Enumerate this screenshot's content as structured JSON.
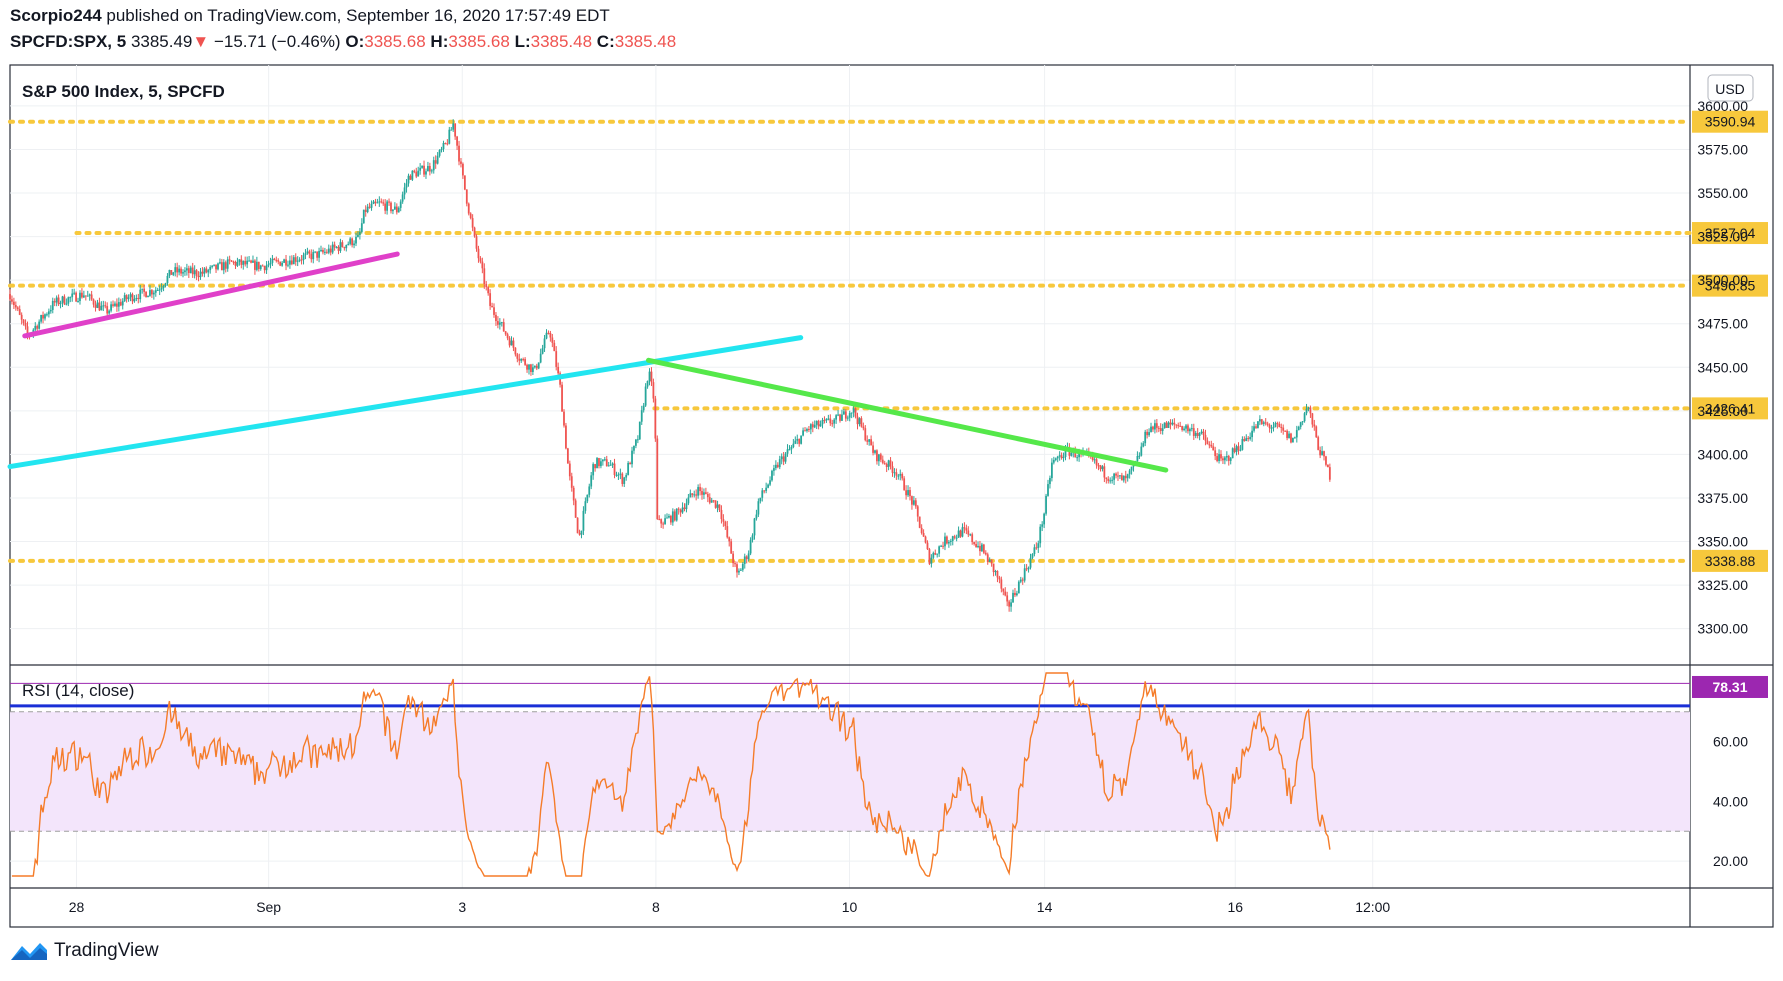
{
  "header": {
    "author": "Scorpio244",
    "published": "published on TradingView.com, September 16, 2020 17:57:49 EDT",
    "symbol": "SPCFD:SPX, 5",
    "last": "3385.49",
    "change": "−15.71 (−0.46%)",
    "o_label": "O:",
    "o_value": "3385.68",
    "h_label": "H:",
    "h_value": "3385.68",
    "l_label": "L:",
    "l_value": "3385.48",
    "c_label": "C:",
    "c_value": "3385.48"
  },
  "brand": {
    "name": "TradingView"
  },
  "chart_data": [
    {
      "type": "candlestick",
      "title": "S&P 500 Index, 5, SPCFD",
      "currency": "USD",
      "x_ticks": [
        {
          "label": "28",
          "pos": 0.045
        },
        {
          "label": "Sep",
          "pos": 0.175
        },
        {
          "label": "3",
          "pos": 0.306
        },
        {
          "label": "8",
          "pos": 0.437
        },
        {
          "label": "10",
          "pos": 0.568
        },
        {
          "label": "14",
          "pos": 0.7
        },
        {
          "label": "16",
          "pos": 0.829
        },
        {
          "label": "12:00",
          "pos": 0.922
        }
      ],
      "ylim": [
        3282,
        3612
      ],
      "y_ticks": [
        "3300.00",
        "3325.00",
        "3350.00",
        "3375.00",
        "3400.00",
        "3425.00",
        "3450.00",
        "3475.00",
        "3500.00",
        "3525.00",
        "3550.00",
        "3575.00",
        "3600.00"
      ],
      "price_path": [
        [
          0.0,
          3492
        ],
        [
          0.012,
          3468
        ],
        [
          0.03,
          3487
        ],
        [
          0.05,
          3492
        ],
        [
          0.065,
          3482
        ],
        [
          0.08,
          3490
        ],
        [
          0.1,
          3495
        ],
        [
          0.11,
          3505
        ],
        [
          0.13,
          3504
        ],
        [
          0.15,
          3510
        ],
        [
          0.17,
          3508
        ],
        [
          0.19,
          3512
        ],
        [
          0.21,
          3515
        ],
        [
          0.225,
          3520
        ],
        [
          0.236,
          3524
        ],
        [
          0.24,
          3540
        ],
        [
          0.25,
          3544
        ],
        [
          0.262,
          3540
        ],
        [
          0.27,
          3560
        ],
        [
          0.285,
          3565
        ],
        [
          0.295,
          3578
        ],
        [
          0.3,
          3590
        ],
        [
          0.306,
          3560
        ],
        [
          0.315,
          3520
        ],
        [
          0.325,
          3485
        ],
        [
          0.335,
          3470
        ],
        [
          0.345,
          3455
        ],
        [
          0.355,
          3448
        ],
        [
          0.365,
          3472
        ],
        [
          0.372,
          3440
        ],
        [
          0.378,
          3390
        ],
        [
          0.385,
          3352
        ],
        [
          0.395,
          3395
        ],
        [
          0.405,
          3395
        ],
        [
          0.415,
          3385
        ],
        [
          0.425,
          3410
        ],
        [
          0.432,
          3448
        ],
        [
          0.436,
          3430
        ],
        [
          0.438,
          3360
        ],
        [
          0.45,
          3365
        ],
        [
          0.465,
          3380
        ],
        [
          0.48,
          3370
        ],
        [
          0.492,
          3330
        ],
        [
          0.5,
          3345
        ],
        [
          0.506,
          3372
        ],
        [
          0.52,
          3395
        ],
        [
          0.54,
          3415
        ],
        [
          0.56,
          3420
        ],
        [
          0.57,
          3426
        ],
        [
          0.585,
          3400
        ],
        [
          0.6,
          3390
        ],
        [
          0.612,
          3370
        ],
        [
          0.622,
          3340
        ],
        [
          0.632,
          3350
        ],
        [
          0.645,
          3356
        ],
        [
          0.658,
          3345
        ],
        [
          0.668,
          3330
        ],
        [
          0.675,
          3312
        ],
        [
          0.685,
          3330
        ],
        [
          0.695,
          3348
        ],
        [
          0.7,
          3368
        ],
        [
          0.705,
          3395
        ],
        [
          0.715,
          3402
        ],
        [
          0.73,
          3398
        ],
        [
          0.742,
          3388
        ],
        [
          0.755,
          3385
        ],
        [
          0.762,
          3395
        ],
        [
          0.77,
          3415
        ],
        [
          0.79,
          3417
        ],
        [
          0.805,
          3412
        ],
        [
          0.82,
          3395
        ],
        [
          0.832,
          3405
        ],
        [
          0.845,
          3418
        ],
        [
          0.858,
          3415
        ],
        [
          0.868,
          3408
        ],
        [
          0.878,
          3428
        ],
        [
          0.885,
          3405
        ],
        [
          0.893,
          3388
        ]
      ],
      "horizontal_levels": [
        {
          "value": 3590.94,
          "label": "3590.94",
          "start": 0.0
        },
        {
          "value": 3527.04,
          "label": "3527.04",
          "start": 0.045
        },
        {
          "value": 3496.85,
          "label": "3496.85",
          "start": 0.0
        },
        {
          "value": 3426.41,
          "label": "3426.41",
          "start": 0.436
        },
        {
          "value": 3338.88,
          "label": "3338.88",
          "start": 0.0
        }
      ],
      "trendlines": [
        {
          "color": "#e040c9",
          "from": [
            0.01,
            3468
          ],
          "to": [
            0.262,
            3515
          ]
        },
        {
          "color": "#22e5f0",
          "from": [
            0.0,
            3393
          ],
          "to": [
            0.535,
            3467
          ]
        },
        {
          "color": "#55e84a",
          "from": [
            0.432,
            3454
          ],
          "to": [
            0.782,
            3391
          ]
        }
      ],
      "level_color": "#f7c83c",
      "up_color": "#26a69a",
      "down_color": "#ef5350"
    },
    {
      "type": "line",
      "title": "RSI (14, close)",
      "ylim": [
        12,
        85
      ],
      "y_ticks": [
        "20.00",
        "40.00",
        "60.00"
      ],
      "band": [
        30,
        70
      ],
      "last_label": "78.31",
      "last_value": 78.31,
      "blue_line_value": 72,
      "line_color": "#f57c29",
      "band_color": "#f3e5fb",
      "seed": 7
    }
  ]
}
